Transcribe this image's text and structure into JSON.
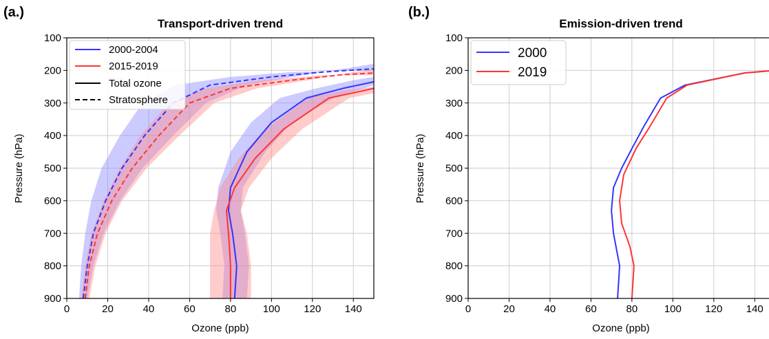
{
  "chart_data": [
    {
      "type": "line",
      "panel_label": "(a.)",
      "title": "Transport-driven trend",
      "xlabel": "Ozone (ppb)",
      "ylabel": "Pressure (hPa)",
      "xlim": [
        0,
        150
      ],
      "ylim": [
        900,
        100
      ],
      "x_ticks": [
        0,
        20,
        40,
        60,
        80,
        100,
        120,
        140
      ],
      "y_ticks": [
        100,
        200,
        300,
        400,
        500,
        600,
        700,
        800,
        900
      ],
      "y_inverted": true,
      "grid": true,
      "legend_position": "top-left",
      "legend": [
        {
          "label": "2000-2004",
          "color": "#3333ff",
          "style": "solid"
        },
        {
          "label": "2015-2019",
          "color": "#ff3333",
          "style": "solid"
        },
        {
          "label": "Total ozone",
          "color": "#000000",
          "style": "solid"
        },
        {
          "label": "Stratosphere",
          "color": "#000000",
          "style": "dashed"
        }
      ],
      "series": [
        {
          "color": "#3333ff",
          "style": "dashed",
          "band_color": "#8c8cff",
          "points": [
            [
              8,
              900
            ],
            [
              10,
              800
            ],
            [
              13,
              700
            ],
            [
              19,
              600
            ],
            [
              27,
              500
            ],
            [
              38,
              400
            ],
            [
              52,
              300
            ],
            [
              70,
              245
            ],
            [
              100,
              220
            ],
            [
              125,
              205
            ],
            [
              150,
              195
            ]
          ],
          "band_lower": [
            [
              6,
              900
            ],
            [
              7,
              800
            ],
            [
              9,
              700
            ],
            [
              12,
              600
            ],
            [
              17,
              500
            ],
            [
              26,
              400
            ],
            [
              37,
              300
            ],
            [
              53,
              245
            ],
            [
              80,
              220
            ],
            [
              110,
              205
            ],
            [
              150,
              200
            ]
          ],
          "band_upper": [
            [
              10,
              900
            ],
            [
              13,
              800
            ],
            [
              18,
              700
            ],
            [
              26,
              600
            ],
            [
              37,
              500
            ],
            [
              52,
              400
            ],
            [
              68,
              300
            ],
            [
              88,
              245
            ],
            [
              115,
              215
            ],
            [
              135,
              195
            ],
            [
              150,
              180
            ]
          ]
        },
        {
          "color": "#ff3333",
          "style": "dashed",
          "band_color": "#ff8c8c",
          "points": [
            [
              9,
              900
            ],
            [
              11,
              800
            ],
            [
              15,
              700
            ],
            [
              22,
              600
            ],
            [
              32,
              500
            ],
            [
              45,
              400
            ],
            [
              60,
              300
            ],
            [
              80,
              255
            ],
            [
              110,
              230
            ],
            [
              135,
              213
            ],
            [
              150,
              208
            ]
          ],
          "band_lower": [
            [
              7,
              900
            ],
            [
              9,
              800
            ],
            [
              12,
              700
            ],
            [
              18,
              600
            ],
            [
              26,
              500
            ],
            [
              36,
              400
            ],
            [
              50,
              300
            ],
            [
              68,
              255
            ],
            [
              95,
              230
            ],
            [
              125,
              215
            ],
            [
              150,
              215
            ]
          ],
          "band_upper": [
            [
              11,
              900
            ],
            [
              14,
              800
            ],
            [
              19,
              700
            ],
            [
              27,
              600
            ],
            [
              39,
              500
            ],
            [
              55,
              400
            ],
            [
              72,
              300
            ],
            [
              93,
              255
            ],
            [
              120,
              228
            ],
            [
              140,
              205
            ],
            [
              150,
              198
            ]
          ]
        },
        {
          "color": "#3333ff",
          "style": "solid",
          "band_color": "#8c8cff",
          "points": [
            [
              82,
              900
            ],
            [
              83,
              800
            ],
            [
              81,
              700
            ],
            [
              79,
              630
            ],
            [
              80,
              560
            ],
            [
              88,
              450
            ],
            [
              100,
              360
            ],
            [
              117,
              285
            ],
            [
              135,
              255
            ],
            [
              150,
              235
            ]
          ],
          "band_lower": [
            [
              76,
              900
            ],
            [
              77,
              800
            ],
            [
              75,
              700
            ],
            [
              73,
              630
            ],
            [
              74,
              560
            ],
            [
              80,
              450
            ],
            [
              90,
              360
            ],
            [
              104,
              285
            ],
            [
              122,
              255
            ],
            [
              140,
              230
            ],
            [
              150,
              220
            ]
          ],
          "band_upper": [
            [
              88,
              900
            ],
            [
              89,
              800
            ],
            [
              87,
              700
            ],
            [
              85,
              630
            ],
            [
              86,
              560
            ],
            [
              97,
              450
            ],
            [
              110,
              360
            ],
            [
              130,
              285
            ],
            [
              145,
              255
            ],
            [
              150,
              245
            ]
          ]
        },
        {
          "color": "#ff3333",
          "style": "solid",
          "band_color": "#ff8c8c",
          "points": [
            [
              80,
              900
            ],
            [
              80,
              800
            ],
            [
              79,
              700
            ],
            [
              78,
              630
            ],
            [
              82,
              560
            ],
            [
              92,
              470
            ],
            [
              106,
              380
            ],
            [
              128,
              285
            ],
            [
              145,
              262
            ],
            [
              150,
              255
            ]
          ],
          "band_lower": [
            [
              70,
              900
            ],
            [
              70,
              800
            ],
            [
              70,
              700
            ],
            [
              72,
              630
            ],
            [
              75,
              560
            ],
            [
              84,
              470
            ],
            [
              97,
              380
            ],
            [
              118,
              285
            ],
            [
              135,
              262
            ],
            [
              150,
              250
            ]
          ],
          "band_upper": [
            [
              90,
              900
            ],
            [
              90,
              800
            ],
            [
              88,
              700
            ],
            [
              85,
              630
            ],
            [
              89,
              560
            ],
            [
              100,
              470
            ],
            [
              115,
              380
            ],
            [
              138,
              285
            ],
            [
              150,
              270
            ]
          ]
        }
      ]
    },
    {
      "type": "line",
      "panel_label": "(b.)",
      "title": "Emission-driven trend",
      "xlabel": "Ozone (ppb)",
      "ylabel": "Pressure (hPa)",
      "xlim": [
        0,
        150
      ],
      "ylim": [
        900,
        100
      ],
      "x_ticks": [
        0,
        20,
        40,
        60,
        80,
        100,
        120,
        140
      ],
      "y_ticks": [
        100,
        200,
        300,
        400,
        500,
        600,
        700,
        800,
        900
      ],
      "y_inverted": true,
      "grid": true,
      "legend_position": "top-left",
      "legend": [
        {
          "label": "2000",
          "color": "#3333ff",
          "style": "solid"
        },
        {
          "label": "2019",
          "color": "#ff3333",
          "style": "solid"
        }
      ],
      "series": [
        {
          "color": "#3333ff",
          "style": "solid",
          "points": [
            [
              73,
              900
            ],
            [
              74,
              800
            ],
            [
              71,
              700
            ],
            [
              70,
              630
            ],
            [
              71,
              560
            ],
            [
              75,
              500
            ],
            [
              80,
              440
            ],
            [
              86,
              370
            ],
            [
              94,
              285
            ],
            [
              106,
              245
            ],
            [
              135,
              208
            ],
            [
              150,
              200
            ]
          ]
        },
        {
          "color": "#ff3333",
          "style": "solid",
          "points": [
            [
              80,
              900
            ],
            [
              81,
              800
            ],
            [
              79,
              740
            ],
            [
              75,
              670
            ],
            [
              74,
              600
            ],
            [
              76,
              520
            ],
            [
              82,
              440
            ],
            [
              89,
              370
            ],
            [
              97,
              285
            ],
            [
              107,
              245
            ],
            [
              135,
              208
            ],
            [
              150,
              200
            ]
          ]
        }
      ]
    }
  ]
}
